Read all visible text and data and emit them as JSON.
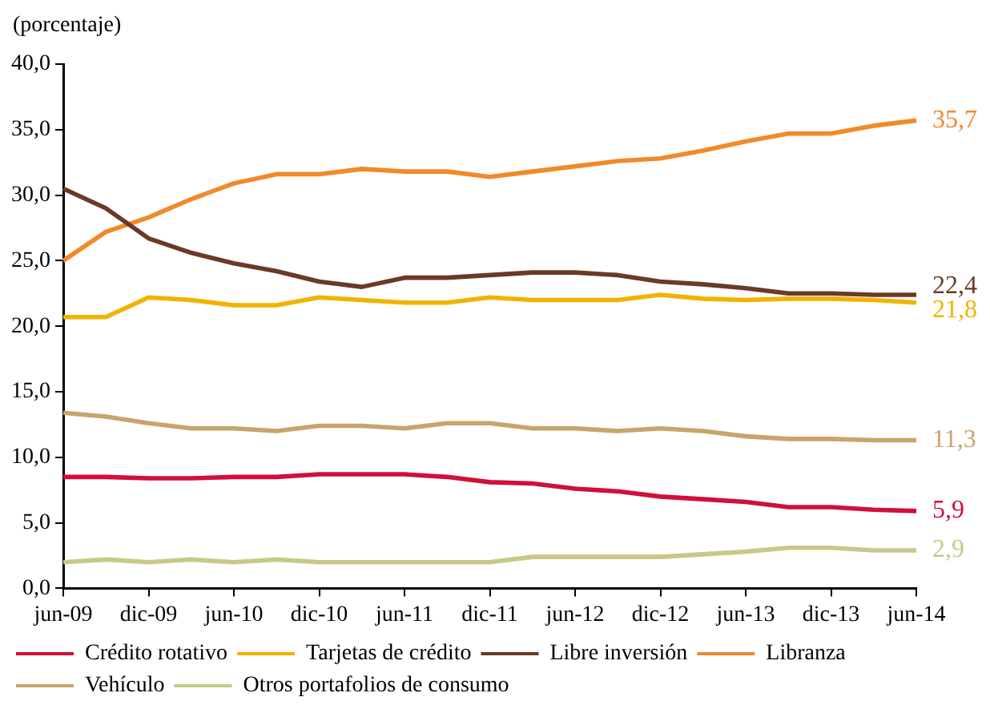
{
  "chart_data": {
    "type": "line",
    "ylabel": "(porcentaje)",
    "categories": [
      "jun-09",
      null,
      "dic-09",
      null,
      "jun-10",
      null,
      "dic-10",
      null,
      "jun-11",
      null,
      "dic-11",
      null,
      "jun-12",
      null,
      "dic-12",
      null,
      "jun-13",
      null,
      "dic-13",
      null,
      "jun-14"
    ],
    "ylim": [
      0,
      40
    ],
    "yticks": [
      {
        "value": 0,
        "label": "0,0"
      },
      {
        "value": 5,
        "label": "5,0"
      },
      {
        "value": 10,
        "label": "10,0"
      },
      {
        "value": 15,
        "label": "15,0"
      },
      {
        "value": 20,
        "label": "20,0"
      },
      {
        "value": 25,
        "label": "25,0"
      },
      {
        "value": 30,
        "label": "30,0"
      },
      {
        "value": 35,
        "label": "35,0"
      },
      {
        "value": 40,
        "label": "40,0"
      }
    ],
    "grid": false,
    "legend": "bottom",
    "marker": "none",
    "line_style": "solid",
    "series": [
      {
        "name": "Crédito rotativo",
        "color": "#d0103a",
        "values": [
          8.5,
          8.5,
          8.4,
          8.4,
          8.5,
          8.5,
          8.7,
          8.7,
          8.7,
          8.5,
          8.1,
          8.0,
          7.6,
          7.4,
          7.0,
          6.8,
          6.6,
          6.2,
          6.2,
          6.0,
          5.9
        ],
        "value_labels": [
          null,
          null,
          null,
          null,
          null,
          null,
          null,
          null,
          null,
          null,
          null,
          null,
          null,
          null,
          null,
          null,
          null,
          null,
          null,
          null,
          "5,9"
        ]
      },
      {
        "name": "Tarjetas de crédito",
        "color": "#f0b400",
        "values": [
          20.7,
          20.7,
          22.2,
          22.0,
          21.6,
          21.6,
          22.2,
          22.0,
          21.8,
          21.8,
          22.2,
          22.0,
          22.0,
          22.0,
          22.4,
          22.1,
          22.0,
          22.1,
          22.1,
          22.0,
          21.8
        ],
        "value_labels": [
          null,
          null,
          null,
          null,
          null,
          null,
          null,
          null,
          null,
          null,
          null,
          null,
          null,
          null,
          null,
          null,
          null,
          null,
          null,
          null,
          "21,8"
        ]
      },
      {
        "name": "Libre inversión",
        "color": "#6b3a26",
        "values": [
          30.5,
          29.0,
          26.7,
          25.6,
          24.8,
          24.2,
          23.4,
          23.0,
          23.7,
          23.7,
          23.9,
          24.1,
          24.1,
          23.9,
          23.4,
          23.2,
          22.9,
          22.5,
          22.5,
          22.4,
          22.4
        ],
        "value_labels": [
          null,
          null,
          null,
          null,
          null,
          null,
          null,
          null,
          null,
          null,
          null,
          null,
          null,
          null,
          null,
          null,
          null,
          null,
          null,
          null,
          "22,4"
        ]
      },
      {
        "name": "Libranza",
        "color": "#f08a2a",
        "values": [
          25.0,
          27.2,
          28.3,
          29.7,
          30.9,
          31.6,
          31.6,
          32.0,
          31.8,
          31.8,
          31.4,
          31.8,
          32.2,
          32.6,
          32.8,
          33.4,
          34.1,
          34.7,
          34.7,
          35.3,
          35.7
        ],
        "value_labels": [
          null,
          null,
          null,
          null,
          null,
          null,
          null,
          null,
          null,
          null,
          null,
          null,
          null,
          null,
          null,
          null,
          null,
          null,
          null,
          null,
          "35,7"
        ]
      },
      {
        "name": "Vehículo",
        "color": "#c8a46e",
        "values": [
          13.4,
          13.1,
          12.6,
          12.2,
          12.2,
          12.0,
          12.4,
          12.4,
          12.2,
          12.6,
          12.6,
          12.2,
          12.2,
          12.0,
          12.2,
          12.0,
          11.6,
          11.4,
          11.4,
          11.3,
          11.3
        ],
        "value_labels": [
          null,
          null,
          null,
          null,
          null,
          null,
          null,
          null,
          null,
          null,
          null,
          null,
          null,
          null,
          null,
          null,
          null,
          null,
          null,
          null,
          "11,3"
        ]
      },
      {
        "name": "Otros portafolios de consumo",
        "color": "#c8c88a",
        "values": [
          2.0,
          2.2,
          2.0,
          2.2,
          2.0,
          2.2,
          2.0,
          2.0,
          2.0,
          2.0,
          2.0,
          2.4,
          2.4,
          2.4,
          2.4,
          2.6,
          2.8,
          3.1,
          3.1,
          2.9,
          2.9
        ],
        "value_labels": [
          null,
          null,
          null,
          null,
          null,
          null,
          null,
          null,
          null,
          null,
          null,
          null,
          null,
          null,
          null,
          null,
          null,
          null,
          null,
          null,
          "2,9"
        ]
      }
    ]
  }
}
